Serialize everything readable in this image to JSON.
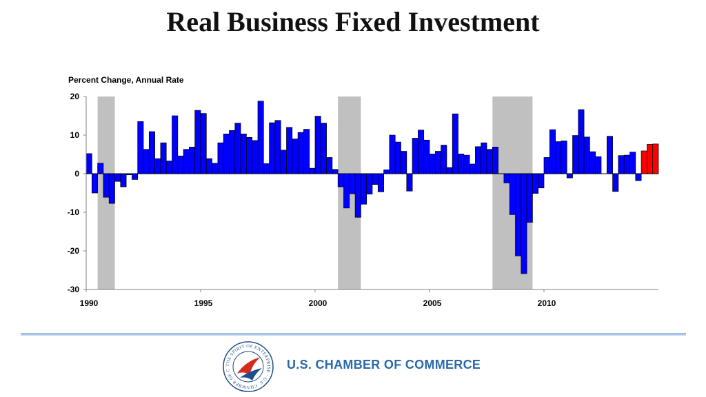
{
  "slide": {
    "title": "Real Business Fixed Investment"
  },
  "footer": {
    "organization": "U.S. CHAMBER OF COMMERCE",
    "seal_text": "THE SPIRIT OF ENTERPRISE · U.S. CHAMBER OF COMMERCE ·",
    "colors": {
      "org_text": "#2a6aa8",
      "seal_red": "#d52b1e",
      "seal_blue": "#1f4e8c"
    }
  },
  "chart_data": {
    "type": "bar",
    "ylabel": "Percent Change, Annual Rate",
    "ylim": [
      -30,
      20
    ],
    "yticks": [
      20,
      10,
      0,
      -10,
      -20,
      -30
    ],
    "xticks": [
      1990,
      1995,
      2000,
      2005,
      2010
    ],
    "x_start": 1990.0,
    "quarter_step": 0.25,
    "grid": false,
    "colors": {
      "historical": "#0000ff",
      "forecast": "#ff0000",
      "recession": "#c0c0c0"
    },
    "recessions": [
      [
        1990.5,
        1991.25
      ],
      [
        2001.0,
        2002.0
      ],
      [
        2007.75,
        2009.5
      ]
    ],
    "series": [
      {
        "name": "",
        "values": [
          5.2,
          -5.0,
          2.7,
          -6.1,
          -7.7,
          -2.0,
          -3.4,
          -0.3,
          -1.5,
          13.5,
          6.3,
          10.9,
          3.9,
          8.0,
          3.3,
          15.0,
          4.6,
          6.3,
          6.9,
          16.4,
          15.6,
          3.9,
          2.7,
          8.0,
          10.3,
          11.2,
          13.1,
          10.3,
          9.4,
          8.6,
          18.8,
          2.6,
          13.2,
          13.8,
          6.1,
          12.0,
          9.0,
          10.7,
          11.5,
          1.4,
          14.9,
          13.1,
          4.2,
          1.1,
          -3.4,
          -8.9,
          -5.2,
          -11.3,
          -7.9,
          -5.3,
          -2.8,
          -4.7,
          1.0,
          10.0,
          8.2,
          5.8,
          -4.5,
          9.2,
          11.3,
          8.7,
          5.1,
          5.8,
          7.4,
          1.6,
          15.5,
          5.1,
          4.8,
          2.5,
          7.0,
          8.0,
          6.3,
          6.9,
          0.0,
          -2.4,
          -10.6,
          -21.3,
          -25.9,
          -12.6,
          -5.1,
          -3.7,
          4.2,
          11.4,
          8.3,
          8.5,
          -1.1,
          9.9,
          16.6,
          9.5,
          5.7,
          4.4,
          0.0,
          9.7,
          -4.6,
          4.7,
          4.8,
          5.6,
          -1.8
        ],
        "forecast": [
          5.9,
          7.6,
          7.7
        ]
      }
    ]
  }
}
